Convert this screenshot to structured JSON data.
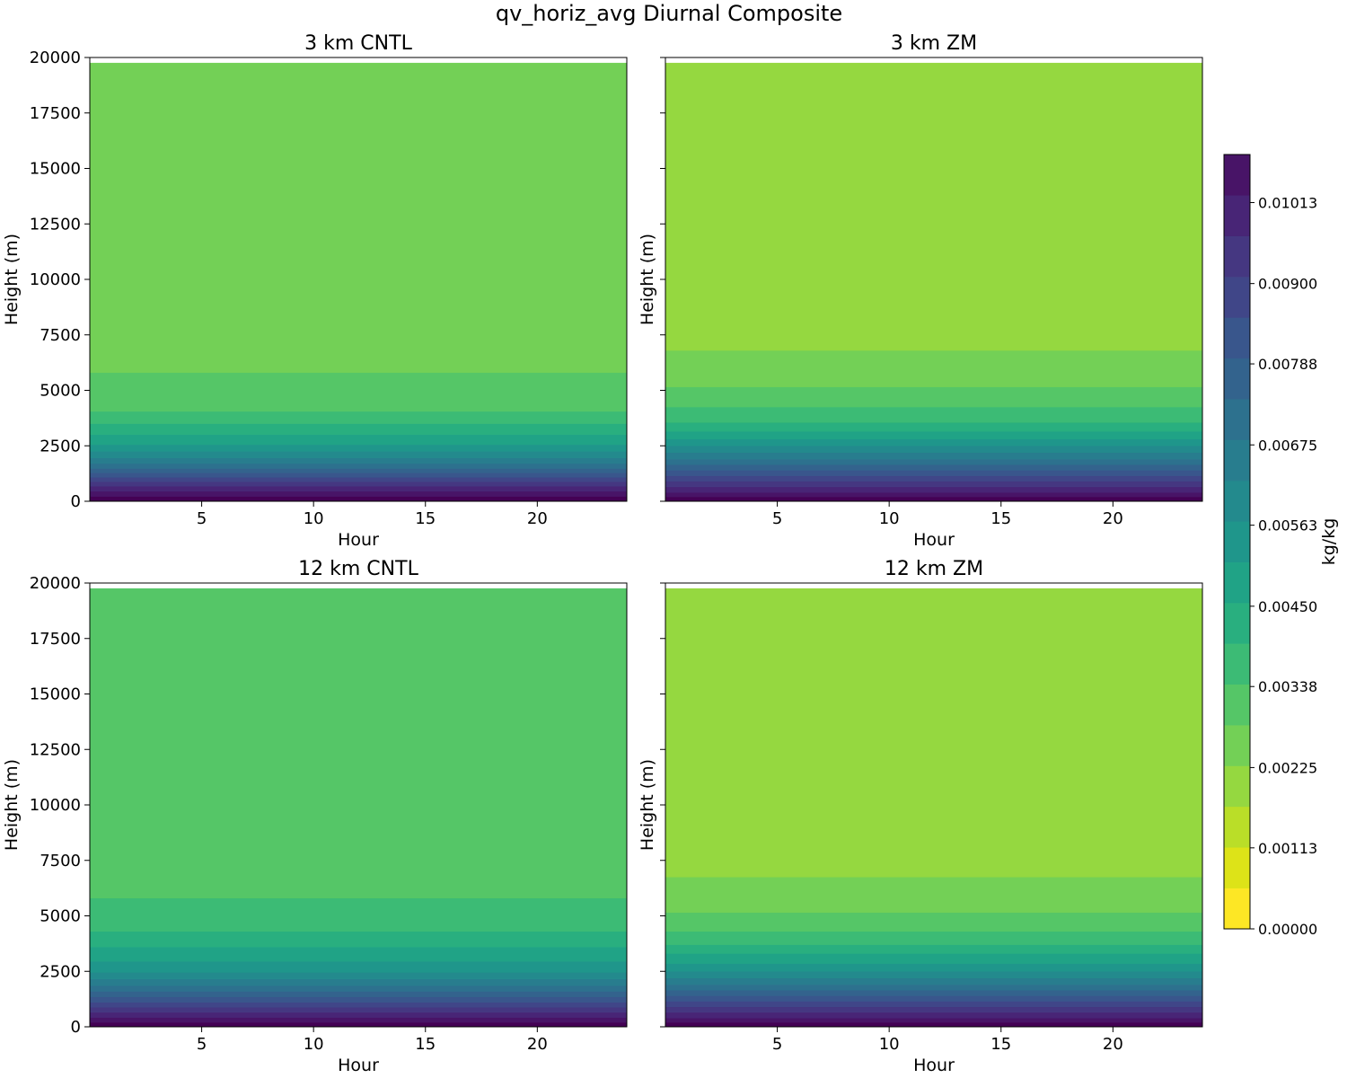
{
  "figure_title": "qv_horiz_avg Diurnal Composite",
  "colormap": [
    "#fde725",
    "#dde318",
    "#bade28",
    "#95d840",
    "#73d056",
    "#55c667",
    "#3cbb75",
    "#29af7f",
    "#20a386",
    "#1f968b",
    "#238a8d",
    "#287d8e",
    "#2d718e",
    "#33638d",
    "#39568c",
    "#404688",
    "#453781",
    "#482576",
    "#481467",
    "#440154"
  ],
  "chart_data": [
    {
      "type": "heatmap",
      "title": "3 km CNTL",
      "xlabel": "Hour",
      "ylabel": "Height (m)",
      "x_range": [
        0,
        24
      ],
      "xlim": [
        0,
        24
      ],
      "ylim": [
        0,
        20000
      ],
      "top_of_data_m": 19750,
      "xticks": [
        5,
        10,
        15,
        20
      ],
      "yticks": [
        0,
        2500,
        5000,
        7500,
        10000,
        12500,
        15000,
        17500,
        20000
      ],
      "ytick_labels_visible": true,
      "band_tops_m": [
        220,
        450,
        680,
        880,
        1080,
        1280,
        1480,
        1700,
        1950,
        2250,
        2550,
        3000,
        3500,
        4050,
        5800
      ]
    },
    {
      "type": "heatmap",
      "title": "3 km ZM",
      "xlabel": "Hour",
      "ylabel": "Height (m)",
      "x_range": [
        0,
        24
      ],
      "xlim": [
        0,
        24
      ],
      "ylim": [
        0,
        20000
      ],
      "top_of_data_m": 19750,
      "xticks": [
        5,
        10,
        15,
        20
      ],
      "yticks": [
        0,
        2500,
        5000,
        7500,
        10000,
        12500,
        15000,
        17500,
        20000
      ],
      "ytick_labels_visible": false,
      "band_tops_m": [
        200,
        400,
        650,
        900,
        1150,
        1400,
        1650,
        1900,
        2200,
        2500,
        2800,
        3150,
        3550,
        4250,
        5150,
        6800
      ]
    },
    {
      "type": "heatmap",
      "title": "12 km CNTL",
      "xlabel": "Hour",
      "ylabel": "Height (m)",
      "x_range": [
        0,
        24
      ],
      "xlim": [
        0,
        24
      ],
      "ylim": [
        0,
        20000
      ],
      "top_of_data_m": 19750,
      "xticks": [
        5,
        10,
        15,
        20
      ],
      "yticks": [
        0,
        2500,
        5000,
        7500,
        10000,
        12500,
        15000,
        17500,
        20000
      ],
      "ytick_labels_visible": true,
      "band_tops_m": [
        200,
        420,
        650,
        880,
        1100,
        1350,
        1600,
        1850,
        2150,
        2450,
        2950,
        3600,
        4300,
        5800
      ]
    },
    {
      "type": "heatmap",
      "title": "12 km ZM",
      "xlabel": "Hour",
      "ylabel": "Height (m)",
      "x_range": [
        0,
        24
      ],
      "xlim": [
        0,
        24
      ],
      "ylim": [
        0,
        20000
      ],
      "top_of_data_m": 19750,
      "xticks": [
        5,
        10,
        15,
        20
      ],
      "yticks": [
        0,
        2500,
        5000,
        7500,
        10000,
        12500,
        15000,
        17500,
        20000
      ],
      "ytick_labels_visible": false,
      "band_tops_m": [
        200,
        400,
        650,
        900,
        1150,
        1400,
        1650,
        1900,
        2200,
        2500,
        2850,
        3300,
        3700,
        4300,
        5150,
        6750
      ]
    }
  ],
  "colorbar": {
    "label": "kg/kg",
    "min": 0,
    "max": 0.0108,
    "levels": 19,
    "ticks": [
      0,
      0.00113,
      0.00225,
      0.00338,
      0.0045,
      0.00563,
      0.00675,
      0.00788,
      0.009,
      0.01013
    ],
    "tick_labels": [
      "0.00000",
      "0.00113",
      "0.00225",
      "0.00338",
      "0.00450",
      "0.00563",
      "0.00675",
      "0.00788",
      "0.00900",
      "0.01013"
    ]
  }
}
